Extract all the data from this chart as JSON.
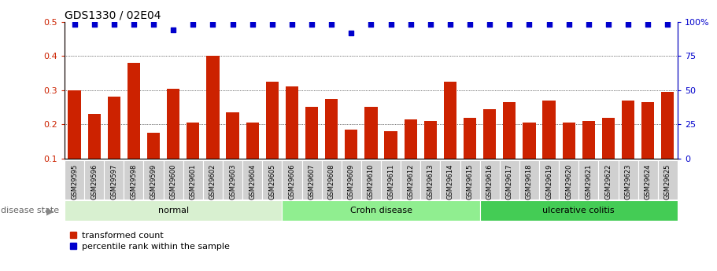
{
  "title": "GDS1330 / 02E04",
  "samples": [
    "GSM29595",
    "GSM29596",
    "GSM29597",
    "GSM29598",
    "GSM29599",
    "GSM29600",
    "GSM29601",
    "GSM29602",
    "GSM29603",
    "GSM29604",
    "GSM29605",
    "GSM29606",
    "GSM29607",
    "GSM29608",
    "GSM29609",
    "GSM29610",
    "GSM29611",
    "GSM29612",
    "GSM29613",
    "GSM29614",
    "GSM29615",
    "GSM29616",
    "GSM29617",
    "GSM29618",
    "GSM29619",
    "GSM29620",
    "GSM29621",
    "GSM29622",
    "GSM29623",
    "GSM29624",
    "GSM29625"
  ],
  "bar_values": [
    0.3,
    0.23,
    0.28,
    0.38,
    0.175,
    0.305,
    0.205,
    0.4,
    0.235,
    0.205,
    0.325,
    0.31,
    0.25,
    0.275,
    0.185,
    0.25,
    0.18,
    0.215,
    0.21,
    0.325,
    0.22,
    0.245,
    0.265,
    0.205,
    0.27,
    0.205,
    0.21,
    0.22,
    0.27,
    0.265,
    0.295
  ],
  "percentile_values": [
    98,
    98,
    98,
    98,
    98,
    94,
    98,
    98,
    98,
    98,
    98,
    98,
    98,
    98,
    92,
    98,
    98,
    98,
    98,
    98,
    98,
    98,
    98,
    98,
    98,
    98,
    98,
    98,
    98,
    98,
    98
  ],
  "bar_color": "#cc2200",
  "percentile_color": "#0000cc",
  "ylim_left": [
    0.1,
    0.5
  ],
  "ylim_right": [
    0,
    100
  ],
  "yticks_left": [
    0.1,
    0.2,
    0.3,
    0.4,
    0.5
  ],
  "yticks_right": [
    0,
    25,
    50,
    75,
    100
  ],
  "groups": [
    {
      "label": "normal",
      "start": 0,
      "end": 11,
      "color": "#d8f0d0"
    },
    {
      "label": "Crohn disease",
      "start": 11,
      "end": 21,
      "color": "#90ee90"
    },
    {
      "label": "ulcerative colitis",
      "start": 21,
      "end": 31,
      "color": "#44cc55"
    }
  ],
  "disease_state_label": "disease state",
  "legend_bar_label": "transformed count",
  "legend_dot_label": "percentile rank within the sample",
  "grid_color": "#888888",
  "background_color": "#ffffff",
  "tick_label_color_left": "#cc2200",
  "tick_label_color_right": "#0000cc",
  "xlabel_bg": "#d0d0d0",
  "title_fontsize": 10
}
